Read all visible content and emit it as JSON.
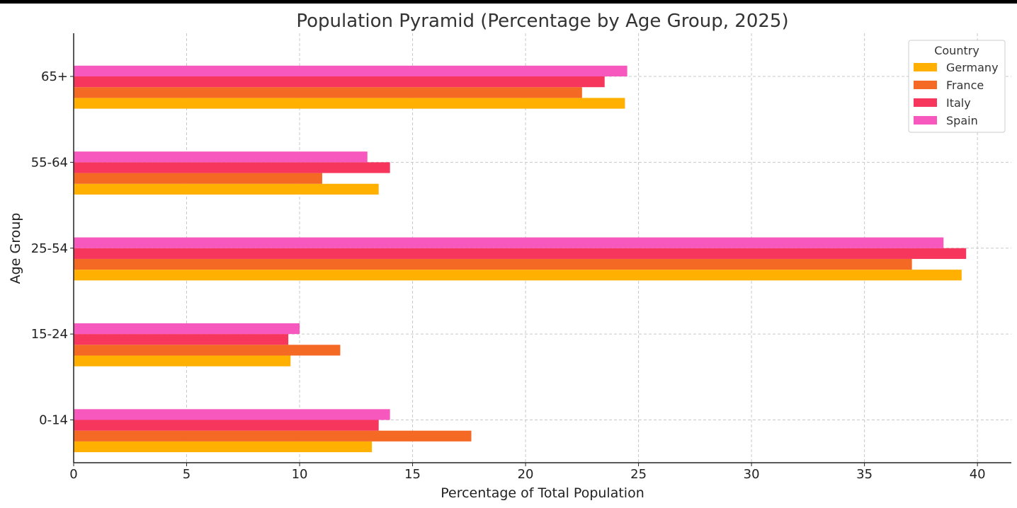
{
  "chart_data": {
    "type": "bar",
    "orientation": "horizontal",
    "title": "Population Pyramid (Percentage by Age Group, 2025)",
    "xlabel": "Percentage of Total Population",
    "ylabel": "Age Group",
    "categories": [
      "0-14",
      "15-24",
      "25-54",
      "55-64",
      "65+"
    ],
    "xlim": [
      0,
      41.5
    ],
    "xticks": [
      0,
      5,
      10,
      15,
      20,
      25,
      30,
      35,
      40
    ],
    "grid": true,
    "legend": {
      "title": "Country",
      "placement": "top-right"
    },
    "series": [
      {
        "name": "Germany",
        "color": "#FFB000",
        "values": [
          13.2,
          9.6,
          39.3,
          13.5,
          24.4
        ]
      },
      {
        "name": "France",
        "color": "#F46A25",
        "values": [
          17.6,
          11.8,
          37.1,
          11.0,
          22.5
        ]
      },
      {
        "name": "Italy",
        "color": "#F6365C",
        "values": [
          13.5,
          9.5,
          39.5,
          14.0,
          23.5
        ]
      },
      {
        "name": "Spain",
        "color": "#F758BE",
        "values": [
          14.0,
          10.0,
          38.5,
          13.0,
          24.5
        ]
      }
    ]
  }
}
